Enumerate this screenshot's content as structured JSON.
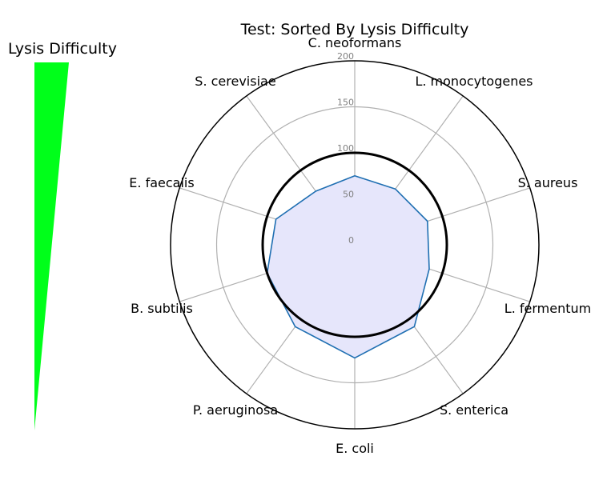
{
  "chart_data": {
    "type": "radar",
    "title": "Test: Sorted By Lysis Difficulty",
    "categories": [
      "C. neoformans",
      "L. monocytogenes",
      "S. aureus",
      "L. fermentum",
      "S. enterica",
      "E. coli",
      "P. aeruginosa",
      "B. subtilis",
      "E. faecalis",
      "S. cerevisiae"
    ],
    "series": [
      {
        "values": [
          75,
          75,
          83,
          85,
          110,
          123,
          110,
          100,
          90,
          72
        ],
        "color": "#1f6fb2",
        "fill": "#e6e6fb"
      }
    ],
    "threshold": {
      "value": 100,
      "color": "#000000"
    },
    "rlim": [
      0,
      200
    ],
    "rticks": [
      0,
      50,
      100,
      150,
      200
    ],
    "grid": true,
    "difficulty_indicator": {
      "title": "Lysis Difficulty",
      "color": "#00ff1a"
    }
  }
}
